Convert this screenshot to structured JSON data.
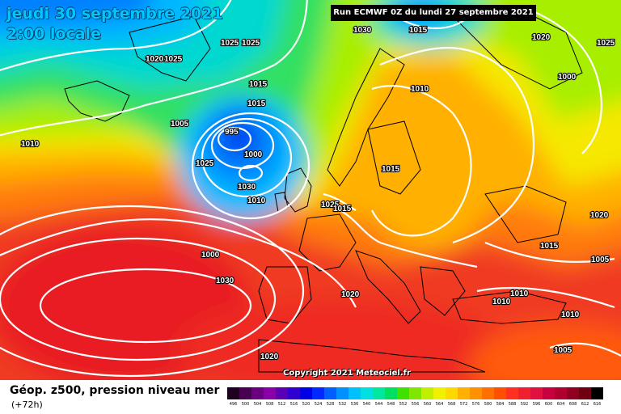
{
  "header": {
    "date": "jeudi 30 septembre 2021",
    "time": "2:00 locale",
    "run": "Run ECMWF 0Z du lundi 27 septembre 2021"
  },
  "copyright": "Copyright 2021 Meteociel.fr",
  "footer": {
    "title": "Géop. z500, pression niveau mer",
    "subtitle": "(+72h)"
  },
  "isobar_labels": [
    "1030",
    "1015",
    "1020",
    "1025",
    "1025",
    "1025",
    "1020",
    "1025",
    "1015",
    "1010",
    "1000",
    "1005",
    "1010",
    "995",
    "1000",
    "1025",
    "1030",
    "1010",
    "1000",
    "1030",
    "1025",
    "1015",
    "1015",
    "1020",
    "1015",
    "1005",
    "1020",
    "1010",
    "1010",
    "1010",
    "1020",
    "1005",
    "1015"
  ],
  "color_scale": {
    "ticks": [
      "496",
      "500",
      "504",
      "508",
      "512",
      "516",
      "520",
      "524",
      "528",
      "532",
      "536",
      "540",
      "544",
      "548",
      "552",
      "556",
      "560",
      "564",
      "568",
      "572",
      "576",
      "580",
      "584",
      "588",
      "592",
      "596",
      "600",
      "604",
      "608",
      "612",
      "616"
    ],
    "colors": [
      "#200020",
      "#4a0050",
      "#6a0080",
      "#8a00a8",
      "#5a00b4",
      "#3000d2",
      "#0000e6",
      "#0028ff",
      "#0060ff",
      "#0090ff",
      "#00c0ff",
      "#00e0e0",
      "#00e8a0",
      "#00e060",
      "#40e000",
      "#80e800",
      "#c0f000",
      "#f0f000",
      "#ffd800",
      "#ffb000",
      "#ff9000",
      "#ff7000",
      "#ff5000",
      "#ff3020",
      "#f02030",
      "#e01040",
      "#c80040",
      "#b00030",
      "#900020",
      "#700010",
      "#000000"
    ]
  }
}
